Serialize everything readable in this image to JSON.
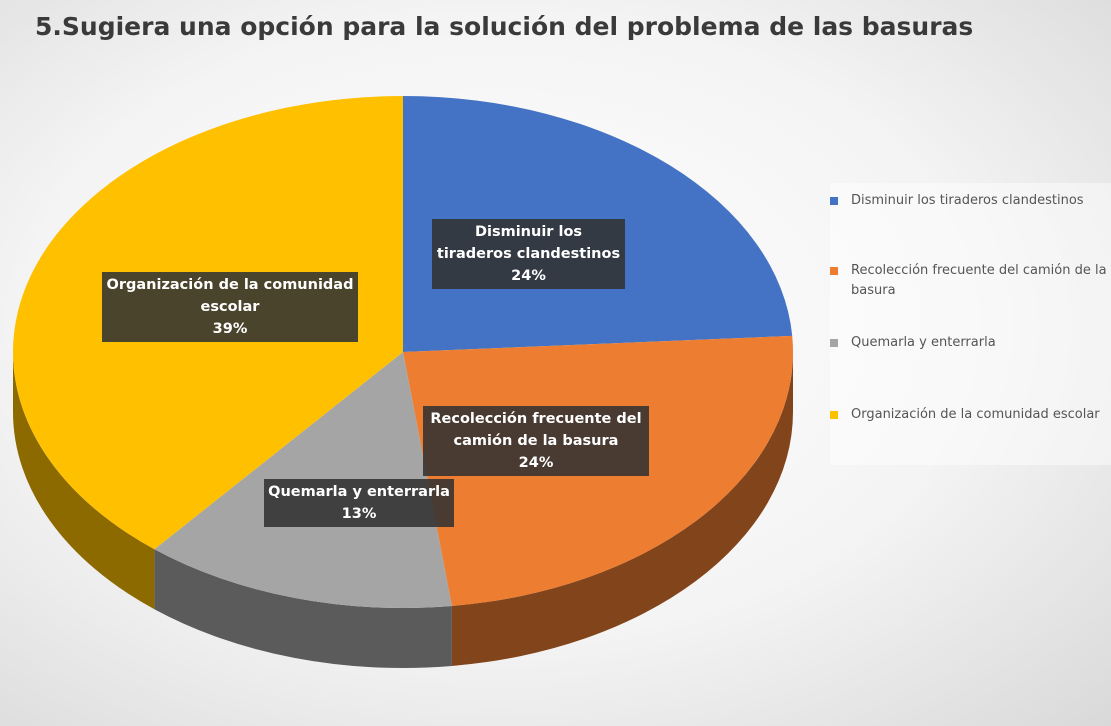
{
  "chart_data": {
    "type": "pie",
    "title": "5.Sugiera una opción para la solución del problema de las basuras",
    "categories": [
      "Disminuir los tiraderos clandestinos",
      "Recolección frecuente del camión de la basura",
      "Quemarla y enterrarla",
      "Organización de la comunidad escolar"
    ],
    "values": [
      24,
      24,
      13,
      39
    ],
    "value_labels": [
      "24%",
      "24%",
      "13%",
      "39%"
    ],
    "colors": [
      "#4472c4",
      "#ed7d31",
      "#a5a5a5",
      "#ffc000"
    ],
    "legend": "right"
  }
}
